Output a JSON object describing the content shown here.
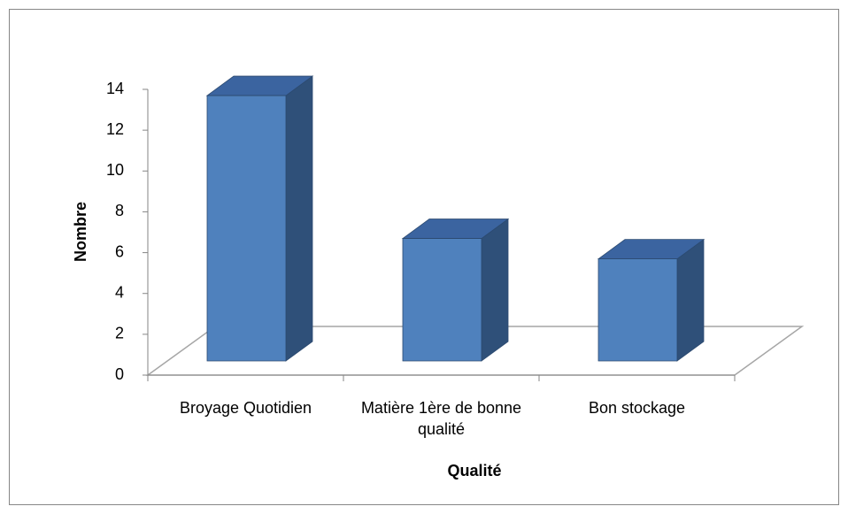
{
  "chart_data": {
    "type": "bar3d",
    "categories": [
      "Broyage Quotidien",
      "Matière 1ère  de bonne qualité",
      "Bon stockage"
    ],
    "values": [
      13,
      6,
      5
    ],
    "color": "#4f81bd",
    "xlabel": "Qualité",
    "ylabel": "Nombre",
    "ylim": [
      0,
      14
    ],
    "yticks": [
      0,
      2,
      4,
      6,
      8,
      10,
      12,
      14
    ]
  }
}
